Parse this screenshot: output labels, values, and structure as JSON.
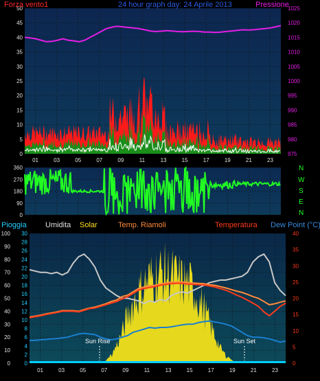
{
  "header": {
    "left_label": "Forza vento1",
    "title": "24 hour graph day:  24 Aprile 2013",
    "right_label": "Pressione"
  },
  "middle": {
    "axis_right_letters": [
      "N",
      "W",
      "S",
      "E",
      "N"
    ]
  },
  "bottom_header": {
    "rain": "Pioggia",
    "humidity": "Umidita",
    "solar": "Solar",
    "temp_ext": "Temp. Riamoli",
    "temp": "Temperatura",
    "dew": "Dew Point (°C)"
  },
  "annotations": {
    "sun_rise": "Sun Rise",
    "sun_set": "Sun Set"
  },
  "colors": {
    "panel_top": "#0b2a52",
    "panel_bottom": "#0a2640",
    "wind_gust": "#ff1a1a",
    "wind_avg": "#1a8f1a",
    "wind_min": "#ffffff",
    "pressure": "#e61ee6",
    "direction": "#22ff22",
    "humidity": "#c8c8c8",
    "temperature": "#ff3a1a",
    "temp_ext": "#ff8a3a",
    "dew": "#1a7fd0",
    "solar": "#f2e21a",
    "rain": "#00d0ff"
  },
  "chart_data": [
    {
      "type": "line",
      "name": "wind-pressure",
      "x_ticks": [
        "01",
        "03",
        "05",
        "07",
        "09",
        "11",
        "13",
        "15",
        "17",
        "19",
        "21",
        "23"
      ],
      "y_left_ticks": [
        0,
        5,
        10,
        15,
        20,
        25,
        30,
        35,
        40,
        45,
        50
      ],
      "y_right_ticks": [
        975,
        980,
        985,
        990,
        995,
        1000,
        1005,
        1010,
        1015,
        1020,
        1025
      ],
      "ylim_left": [
        0,
        50
      ],
      "ylim_right": [
        975,
        1025
      ],
      "pressure": [
        1015,
        1014.8,
        1014.5,
        1014,
        1013.5,
        1013.6,
        1014,
        1014.5,
        1014,
        1013.8,
        1013.5,
        1014,
        1015,
        1016,
        1017,
        1018,
        1018.5,
        1018.8,
        1018.6,
        1018.4,
        1018.2,
        1018,
        1017.6,
        1017.2,
        1017,
        1017.1,
        1017.3,
        1017.2,
        1017,
        1016.9,
        1017,
        1017.1,
        1017,
        1016.8,
        1016.8,
        1016.7,
        1016.8,
        1017,
        1017.2,
        1017.4,
        1017.6,
        1017.5,
        1017.6,
        1017.8,
        1018,
        1018.2,
        1018.6,
        1019
      ]
    },
    {
      "type": "line",
      "name": "wind-direction",
      "x_ticks": [
        "01",
        "03",
        "05",
        "07",
        "09",
        "11",
        "13",
        "15",
        "17",
        "19",
        "21",
        "23"
      ],
      "y_ticks": [
        0,
        90,
        180,
        270,
        360
      ],
      "ylim": [
        0,
        360
      ]
    },
    {
      "type": "line",
      "name": "weather-multi",
      "x_ticks": [
        "01",
        "03",
        "05",
        "07",
        "09",
        "11",
        "13",
        "15",
        "17",
        "19",
        "21",
        "23"
      ],
      "y_left_ticks": [
        0,
        10,
        20,
        30,
        40,
        50,
        60,
        70,
        80,
        90,
        100
      ],
      "y_inner_ticks": [
        0,
        2,
        4,
        6,
        8,
        10,
        12,
        14,
        16,
        18,
        20,
        22,
        24,
        26,
        28,
        30
      ],
      "y_right_ticks": [
        0,
        5,
        10,
        15,
        20,
        25,
        30,
        35,
        40
      ],
      "humidity": [
        72,
        71,
        70,
        70,
        69,
        70,
        68,
        70,
        77,
        82,
        84,
        80,
        74,
        64,
        58,
        55,
        52,
        50,
        50,
        49,
        48,
        46,
        48,
        47,
        49,
        48,
        52,
        54,
        55,
        54,
        56,
        58,
        60,
        62,
        63,
        64,
        64,
        65,
        66,
        67,
        70,
        78,
        82,
        84,
        78,
        62,
        56,
        52
      ],
      "temperature": [
        14,
        14.3,
        14.6,
        15,
        15.3,
        15.6,
        16,
        16,
        16,
        15.8,
        16.3,
        16.8,
        17,
        17.5,
        18,
        18.5,
        19,
        19.8,
        20.5,
        21.5,
        22.5,
        23,
        23.3,
        23.6,
        24,
        24.3,
        24.5,
        24.6,
        24.6,
        24.4,
        24.3,
        24.2,
        24.1,
        23.8,
        23.5,
        23,
        22.5,
        21.8,
        21,
        20.3,
        19.4,
        18.5,
        17.5,
        15.8,
        14.6,
        16,
        17.5,
        18.5
      ],
      "temp_ext": [
        14.2,
        14.5,
        14.8,
        15.2,
        15.5,
        15.8,
        16.2,
        16.2,
        16.2,
        16,
        16.5,
        17,
        17.3,
        17.8,
        18.3,
        19,
        19.5,
        20.5,
        21,
        22,
        23,
        23.5,
        23.8,
        24,
        24.4,
        24.7,
        25,
        25,
        25,
        24.8,
        24.7,
        24.6,
        24.5,
        24.2,
        24,
        23.6,
        23.2,
        22.7,
        22.2,
        21.8,
        21.2,
        20.5,
        20,
        19,
        18,
        18.3,
        18.8,
        19.2
      ],
      "dew": [
        7,
        7,
        7.2,
        7.3,
        7.5,
        7.6,
        7.8,
        8,
        8.5,
        9,
        9.2,
        9,
        8.8,
        8,
        7.5,
        7.2,
        7.5,
        8,
        8.5,
        9.5,
        10,
        10.5,
        11,
        10.8,
        11,
        11,
        11.2,
        11.5,
        11.8,
        12,
        12,
        12.5,
        12.8,
        13,
        12.7,
        12.4,
        12,
        11.5,
        10.5,
        9.5,
        8.5,
        8,
        8,
        7.8,
        7.5,
        7,
        6.5,
        6.8
      ],
      "solar": [
        0,
        0,
        0,
        0,
        0,
        0,
        0,
        0,
        0,
        0,
        0,
        0,
        0,
        0,
        2,
        8,
        18,
        30,
        48,
        60,
        70,
        78,
        84,
        88,
        90,
        90,
        88,
        85,
        82,
        80,
        75,
        65,
        55,
        40,
        28,
        15,
        8,
        3,
        0,
        0,
        0,
        0,
        0,
        0,
        0,
        0,
        0,
        0
      ]
    }
  ]
}
